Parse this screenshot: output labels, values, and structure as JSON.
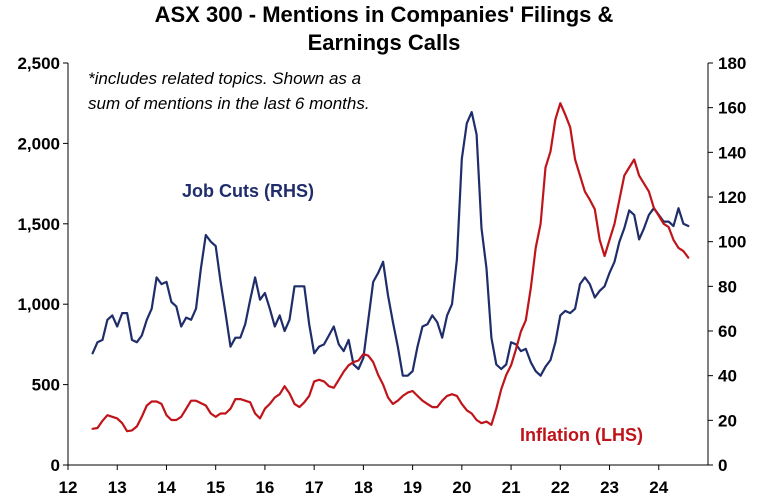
{
  "chart_data": {
    "type": "line",
    "title": [
      "ASX 300 - Mentions in Companies' Filings &",
      "Earnings Calls"
    ],
    "annotation": [
      "*includes related topics. Shown as a",
      "sum of mentions in the last 6 months."
    ],
    "x_ticks": [
      "12",
      "13",
      "14",
      "15",
      "16",
      "17",
      "18",
      "19",
      "20",
      "21",
      "22",
      "23",
      "24"
    ],
    "xlim": [
      2012,
      2025
    ],
    "y_left": {
      "ylim": [
        0,
        2500
      ],
      "ticks": [
        0,
        500,
        1000,
        1500,
        2000,
        2500
      ],
      "tick_labels": [
        "0",
        "500",
        "1,000",
        "1,500",
        "2,000",
        "2,500"
      ]
    },
    "y_right": {
      "ylim": [
        0,
        180
      ],
      "ticks": [
        0,
        20,
        40,
        60,
        80,
        100,
        120,
        140,
        160,
        180
      ],
      "tick_labels": [
        "0",
        "20",
        "40",
        "60",
        "80",
        "100",
        "120",
        "140",
        "160",
        "180"
      ]
    },
    "series": [
      {
        "name": "Job Cuts (RHS)",
        "axis": "right",
        "color": "#1f2d6b",
        "x": [
          2012.5,
          2012.6,
          2012.7,
          2012.8,
          2012.9,
          2013.0,
          2013.1,
          2013.2,
          2013.3,
          2013.4,
          2013.5,
          2013.6,
          2013.7,
          2013.8,
          2013.9,
          2014.0,
          2014.1,
          2014.2,
          2014.3,
          2014.4,
          2014.5,
          2014.6,
          2014.7,
          2014.8,
          2014.9,
          2015.0,
          2015.1,
          2015.2,
          2015.3,
          2015.4,
          2015.5,
          2015.6,
          2015.7,
          2015.8,
          2015.9,
          2016.0,
          2016.1,
          2016.2,
          2016.3,
          2016.4,
          2016.5,
          2016.6,
          2016.7,
          2016.8,
          2016.9,
          2017.0,
          2017.1,
          2017.2,
          2017.3,
          2017.4,
          2017.5,
          2017.6,
          2017.7,
          2017.8,
          2017.9,
          2018.0,
          2018.1,
          2018.2,
          2018.3,
          2018.4,
          2018.5,
          2018.6,
          2018.7,
          2018.8,
          2018.9,
          2019.0,
          2019.1,
          2019.2,
          2019.3,
          2019.4,
          2019.5,
          2019.6,
          2019.7,
          2019.8,
          2019.9,
          2020.0,
          2020.1,
          2020.2,
          2020.3,
          2020.4,
          2020.5,
          2020.6,
          2020.7,
          2020.8,
          2020.9,
          2021.0,
          2021.1,
          2021.2,
          2021.3,
          2021.4,
          2021.5,
          2021.6,
          2021.7,
          2021.8,
          2021.9,
          2022.0,
          2022.1,
          2022.2,
          2022.3,
          2022.4,
          2022.5,
          2022.6,
          2022.7,
          2022.8,
          2022.9,
          2023.0,
          2023.1,
          2023.2,
          2023.3,
          2023.4,
          2023.5,
          2023.6,
          2023.7,
          2023.8,
          2023.9,
          2024.0,
          2024.1,
          2024.2,
          2024.3,
          2024.4,
          2024.5,
          2024.6
        ],
        "values": [
          50,
          55,
          56,
          65,
          67,
          62,
          68,
          68,
          56,
          55,
          58,
          65,
          70,
          84,
          81,
          82,
          73,
          71,
          62,
          66,
          65,
          70,
          88,
          103,
          100,
          98,
          82,
          68,
          53,
          57,
          57,
          63,
          74,
          84,
          74,
          77,
          70,
          62,
          67,
          60,
          65,
          80,
          80,
          80,
          63,
          50,
          53,
          54,
          58,
          62,
          54,
          51,
          56,
          45,
          43,
          48,
          65,
          82,
          86,
          91,
          76,
          64,
          53,
          40,
          40,
          42,
          53,
          62,
          63,
          67,
          64,
          57,
          67,
          72,
          92,
          137,
          153,
          158,
          148,
          106,
          88,
          57,
          45,
          43,
          45,
          55,
          54,
          51,
          52,
          46,
          42,
          40,
          44,
          47,
          55,
          67,
          69,
          68,
          70,
          81,
          84,
          81,
          75,
          78,
          80,
          86,
          91,
          100,
          106,
          114,
          112,
          101,
          106,
          112,
          115,
          112,
          109,
          109,
          107,
          115,
          108,
          107
        ]
      },
      {
        "name": "Inflation (LHS)",
        "axis": "left",
        "color": "#c0141b",
        "x": [
          2012.5,
          2012.6,
          2012.7,
          2012.8,
          2012.9,
          2013.0,
          2013.1,
          2013.2,
          2013.3,
          2013.4,
          2013.5,
          2013.6,
          2013.7,
          2013.8,
          2013.9,
          2014.0,
          2014.1,
          2014.2,
          2014.3,
          2014.4,
          2014.5,
          2014.6,
          2014.7,
          2014.8,
          2014.9,
          2015.0,
          2015.1,
          2015.2,
          2015.3,
          2015.4,
          2015.5,
          2015.6,
          2015.7,
          2015.8,
          2015.9,
          2016.0,
          2016.1,
          2016.2,
          2016.3,
          2016.4,
          2016.5,
          2016.6,
          2016.7,
          2016.8,
          2016.9,
          2017.0,
          2017.1,
          2017.2,
          2017.3,
          2017.4,
          2017.5,
          2017.6,
          2017.7,
          2017.8,
          2017.9,
          2018.0,
          2018.1,
          2018.2,
          2018.3,
          2018.4,
          2018.5,
          2018.6,
          2018.7,
          2018.8,
          2018.9,
          2019.0,
          2019.1,
          2019.2,
          2019.3,
          2019.4,
          2019.5,
          2019.6,
          2019.7,
          2019.8,
          2019.9,
          2020.0,
          2020.1,
          2020.2,
          2020.3,
          2020.4,
          2020.5,
          2020.6,
          2020.7,
          2020.8,
          2020.9,
          2021.0,
          2021.1,
          2021.2,
          2021.3,
          2021.4,
          2021.5,
          2021.6,
          2021.7,
          2021.8,
          2021.9,
          2022.0,
          2022.1,
          2022.2,
          2022.3,
          2022.4,
          2022.5,
          2022.6,
          2022.7,
          2022.8,
          2022.9,
          2023.0,
          2023.1,
          2023.2,
          2023.3,
          2023.4,
          2023.5,
          2023.6,
          2023.7,
          2023.8,
          2023.9,
          2024.0,
          2024.1,
          2024.2,
          2024.3,
          2024.4,
          2024.5,
          2024.6
        ],
        "values": [
          225,
          230,
          275,
          310,
          300,
          290,
          260,
          210,
          215,
          240,
          300,
          370,
          395,
          395,
          380,
          310,
          280,
          280,
          300,
          350,
          400,
          400,
          385,
          370,
          320,
          300,
          320,
          320,
          350,
          410,
          410,
          400,
          390,
          320,
          290,
          350,
          380,
          420,
          440,
          490,
          445,
          380,
          360,
          390,
          430,
          520,
          530,
          520,
          490,
          480,
          530,
          580,
          620,
          640,
          650,
          690,
          680,
          640,
          560,
          500,
          420,
          380,
          400,
          430,
          450,
          460,
          430,
          400,
          380,
          360,
          360,
          400,
          430,
          440,
          430,
          380,
          340,
          320,
          280,
          260,
          270,
          250,
          350,
          470,
          560,
          620,
          720,
          830,
          900,
          1100,
          1350,
          1500,
          1850,
          1950,
          2150,
          2250,
          2180,
          2100,
          1900,
          1800,
          1700,
          1650,
          1590,
          1400,
          1300,
          1400,
          1500,
          1650,
          1800,
          1850,
          1900,
          1800,
          1750,
          1700,
          1600,
          1550,
          1500,
          1480,
          1400,
          1350,
          1330,
          1290
        ]
      }
    ],
    "labels": [
      {
        "text": "Job Cuts (RHS)",
        "series": "Job Cuts (RHS)"
      },
      {
        "text": "Inflation (LHS)",
        "series": "Inflation (LHS)"
      }
    ]
  }
}
